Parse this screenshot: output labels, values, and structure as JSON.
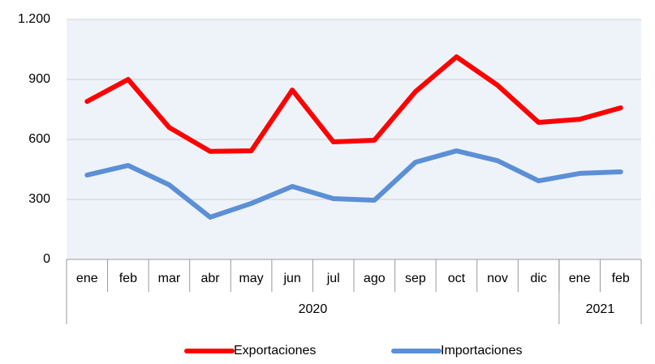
{
  "chart_data": {
    "type": "line",
    "categories": [
      "ene",
      "feb",
      "mar",
      "abr",
      "may",
      "jun",
      "jul",
      "ago",
      "sep",
      "oct",
      "nov",
      "dic",
      "ene",
      "feb"
    ],
    "groups": [
      {
        "label": "2020",
        "span": 12
      },
      {
        "label": "2021",
        "span": 2
      }
    ],
    "series": [
      {
        "name": "Exportaciones",
        "color": "#ff0000",
        "values": [
          790,
          900,
          660,
          540,
          543,
          847,
          588,
          596,
          839,
          1013,
          871,
          685,
          701,
          758
        ]
      },
      {
        "name": "Importaciones",
        "color": "#5b8fd6",
        "values": [
          422,
          470,
          373,
          211,
          280,
          365,
          304,
          296,
          486,
          543,
          494,
          393,
          430,
          438
        ]
      }
    ],
    "ylim": [
      0,
      1200
    ],
    "yticks": [
      0,
      300,
      600,
      900,
      {
        "value": 1200,
        "label": "1.200"
      }
    ],
    "grid": true,
    "legend": "bottom"
  }
}
